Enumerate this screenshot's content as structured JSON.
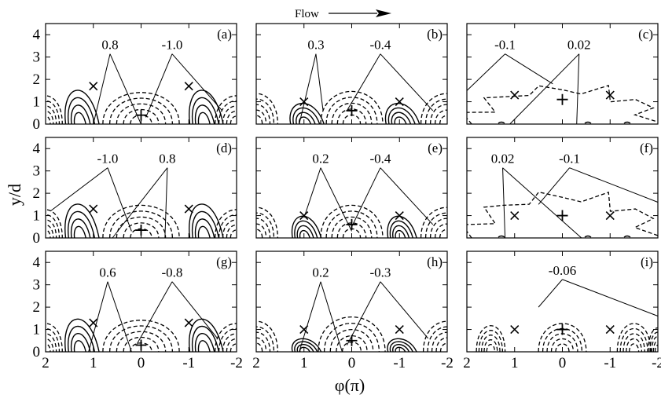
{
  "flow_label": "Flow",
  "chart_data": {
    "type": "contour",
    "layout": "3x3 grid of panels",
    "xlabel": "φ(π)",
    "ylabel": "y/d",
    "xlim": [
      2,
      -2
    ],
    "ylim": [
      0,
      4.5
    ],
    "x_ticks": [
      2,
      1,
      0,
      -1,
      -2
    ],
    "y_ticks": [
      0,
      1,
      2,
      3,
      4
    ],
    "solid_lines": "positive contours",
    "dashed_lines": "negative contours",
    "markers": "× and + markers near y/d ≈ 1",
    "panels": [
      {
        "id": "a",
        "label": "(a)",
        "row": 0,
        "col": 0,
        "contour_labels": [
          "0.8",
          "-1.0"
        ]
      },
      {
        "id": "b",
        "label": "(b)",
        "row": 0,
        "col": 1,
        "contour_labels": [
          "0.3",
          "-0.4"
        ]
      },
      {
        "id": "c",
        "label": "(c)",
        "row": 0,
        "col": 2,
        "contour_labels": [
          "-0.1",
          "0.02"
        ]
      },
      {
        "id": "d",
        "label": "(d)",
        "row": 1,
        "col": 0,
        "contour_labels": [
          "-1.0",
          "0.8"
        ]
      },
      {
        "id": "e",
        "label": "(e)",
        "row": 1,
        "col": 1,
        "contour_labels": [
          "0.2",
          "-0.4"
        ]
      },
      {
        "id": "f",
        "label": "(f)",
        "row": 1,
        "col": 2,
        "contour_labels": [
          "0.02",
          "-0.1"
        ]
      },
      {
        "id": "g",
        "label": "(g)",
        "row": 2,
        "col": 0,
        "contour_labels": [
          "0.6",
          "-0.8"
        ]
      },
      {
        "id": "h",
        "label": "(h)",
        "row": 2,
        "col": 1,
        "contour_labels": [
          "0.2",
          "-0.3"
        ]
      },
      {
        "id": "i",
        "label": "(i)",
        "row": 2,
        "col": 2,
        "contour_labels": [
          "-0.06"
        ]
      }
    ]
  }
}
